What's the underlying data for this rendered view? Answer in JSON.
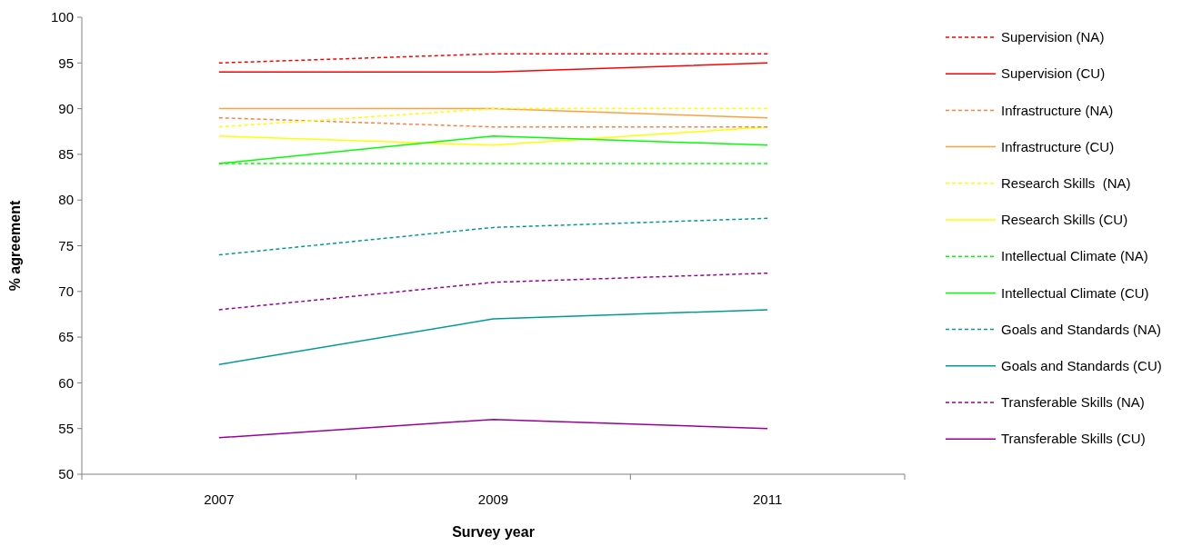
{
  "chart_data": {
    "type": "line",
    "xlabel": "Survey year",
    "ylabel": "% agreement",
    "categories": [
      "2007",
      "2009",
      "2011"
    ],
    "ylim": [
      50,
      100
    ],
    "yticks": [
      50,
      55,
      60,
      65,
      70,
      75,
      80,
      85,
      90,
      95,
      100
    ],
    "grid": false,
    "legend": "right",
    "marker": "none",
    "series": [
      {
        "name": "Supervision (NA)",
        "color": "#ff0000",
        "line_style": "dashed",
        "values": [
          95,
          96,
          96
        ]
      },
      {
        "name": "Supervision (CU)",
        "color": "#ff0000",
        "line_style": "solid",
        "values": [
          94,
          94,
          95
        ]
      },
      {
        "name": "Infrastructure (NA)",
        "color": "#ff8040",
        "line_style": "dashed",
        "values": [
          89,
          88,
          88
        ]
      },
      {
        "name": "Infrastructure (CU)",
        "color": "#ffa040",
        "line_style": "solid",
        "values": [
          90,
          90,
          89
        ]
      },
      {
        "name": "Research Skills  (NA)",
        "color": "#ffff00",
        "line_style": "dashed",
        "values": [
          88,
          90,
          90
        ]
      },
      {
        "name": "Research Skills (CU)",
        "color": "#ffff00",
        "line_style": "solid",
        "values": [
          87,
          86,
          88
        ]
      },
      {
        "name": "Intellectual Climate (NA)",
        "color": "#00ff00",
        "line_style": "dashed",
        "values": [
          84,
          84,
          84
        ]
      },
      {
        "name": "Intellectual Climate (CU)",
        "color": "#00ff00",
        "line_style": "solid",
        "values": [
          84,
          87,
          86
        ]
      },
      {
        "name": "Goals and Standards (NA)",
        "color": "#009999",
        "line_style": "dashed",
        "values": [
          74,
          77,
          78
        ]
      },
      {
        "name": "Goals and Standards (CU)",
        "color": "#009999",
        "line_style": "solid",
        "values": [
          62,
          67,
          68
        ]
      },
      {
        "name": "Transferable Skills (NA)",
        "color": "#990099",
        "line_style": "dashed",
        "values": [
          68,
          71,
          72
        ]
      },
      {
        "name": "Transferable Skills (CU)",
        "color": "#990099",
        "line_style": "solid",
        "values": [
          54,
          56,
          55
        ]
      }
    ]
  }
}
